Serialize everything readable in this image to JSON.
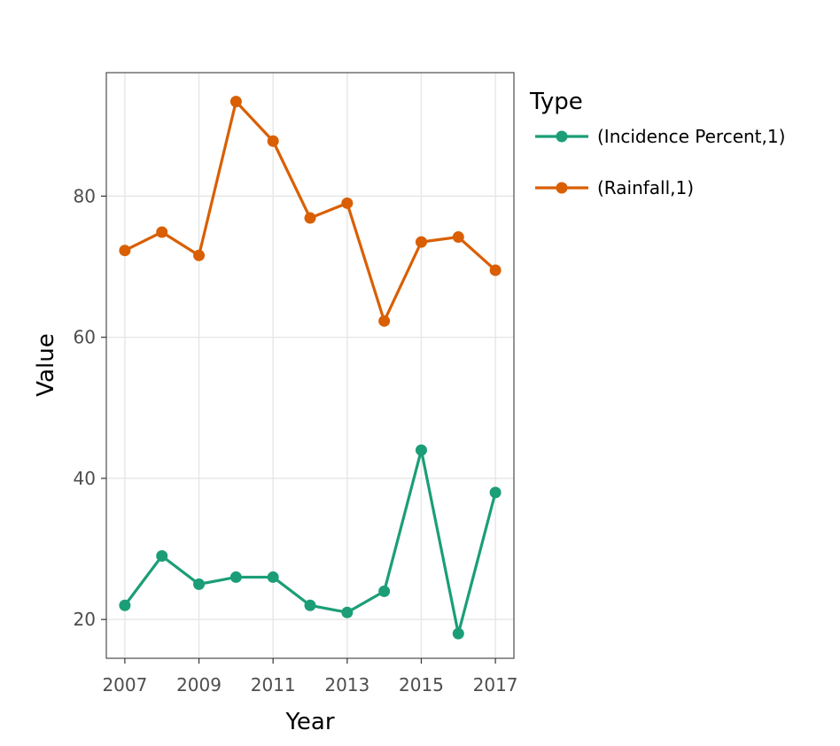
{
  "chart_data": {
    "type": "line",
    "title": "",
    "xlabel": "Year",
    "ylabel": "Value",
    "x": [
      2007,
      2008,
      2009,
      2010,
      2011,
      2012,
      2013,
      2014,
      2015,
      2016,
      2017
    ],
    "xticks": [
      2007,
      2009,
      2011,
      2013,
      2015,
      2017
    ],
    "yticks": [
      20,
      40,
      60,
      80
    ],
    "xlim": [
      2006.5,
      2017.5
    ],
    "ylim": [
      14.5,
      97.5
    ],
    "grid": true,
    "legend": {
      "title": "Type",
      "position": "right"
    },
    "series": [
      {
        "name": "(Incidence Percent,1)",
        "color": "#1b9e77",
        "values": [
          22,
          29,
          25,
          26,
          26,
          22,
          21,
          24,
          44,
          18,
          38
        ]
      },
      {
        "name": "(Rainfall,1)",
        "color": "#d95f02",
        "values": [
          72.3,
          74.9,
          71.6,
          93.4,
          87.8,
          76.9,
          79.0,
          62.3,
          73.5,
          74.2,
          69.5
        ]
      }
    ]
  }
}
